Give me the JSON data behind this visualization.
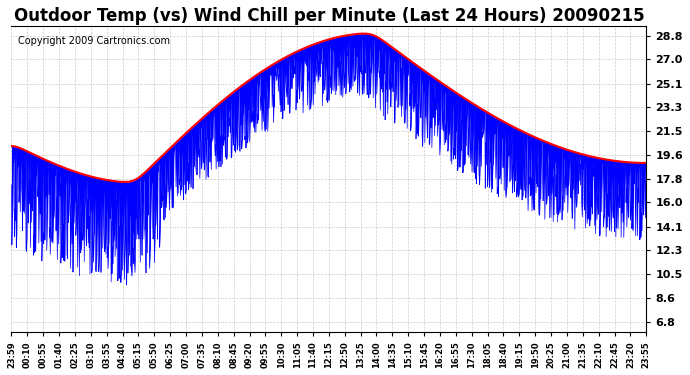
{
  "title": "Outdoor Temp (vs) Wind Chill per Minute (Last 24 Hours) 20090215",
  "copyright": "Copyright 2009 Cartronics.com",
  "yticks": [
    6.8,
    8.6,
    10.5,
    12.3,
    14.1,
    16.0,
    17.8,
    19.6,
    21.5,
    23.3,
    25.1,
    27.0,
    28.8
  ],
  "ylim": [
    6.0,
    29.5
  ],
  "bg_color": "#ffffff",
  "grid_color": "#cccccc",
  "red_color": "#ff0000",
  "blue_color": "#0000ff",
  "title_fontsize": 12,
  "copyright_fontsize": 7,
  "xtick_labels": [
    "23:59",
    "00:10",
    "00:55",
    "01:40",
    "02:25",
    "03:10",
    "03:55",
    "04:40",
    "05:15",
    "05:50",
    "06:25",
    "07:00",
    "07:35",
    "08:10",
    "08:45",
    "09:20",
    "09:55",
    "10:30",
    "11:05",
    "11:40",
    "12:15",
    "12:50",
    "13:25",
    "14:00",
    "14:35",
    "15:10",
    "15:45",
    "16:20",
    "16:55",
    "17:30",
    "18:05",
    "18:40",
    "19:15",
    "19:50",
    "20:25",
    "21:00",
    "21:35",
    "22:10",
    "22:45",
    "23:20",
    "23:55"
  ]
}
